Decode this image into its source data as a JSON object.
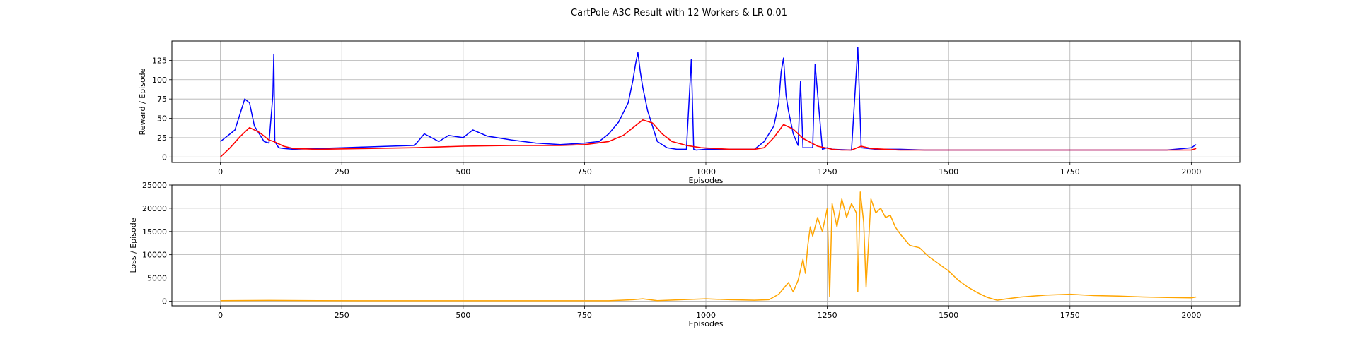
{
  "figure": {
    "title": "CartPole A3C Result with 12 Workers & LR 0.01"
  },
  "chart_data": [
    {
      "type": "line",
      "xlabel": "Episodes",
      "ylabel": "Reward / Episode",
      "xlim": [
        -100,
        2100
      ],
      "ylim": [
        -7,
        150
      ],
      "xticks": [
        0,
        250,
        500,
        750,
        1000,
        1250,
        1500,
        1750,
        2000
      ],
      "yticks": [
        0,
        25,
        50,
        75,
        100,
        125
      ],
      "grid": true,
      "series": [
        {
          "color": "#0000ff",
          "style": "raw",
          "x": [
            0,
            10,
            20,
            30,
            40,
            50,
            60,
            70,
            80,
            90,
            100,
            108,
            110,
            112,
            120,
            130,
            150,
            200,
            250,
            300,
            350,
            400,
            420,
            450,
            470,
            500,
            520,
            550,
            600,
            650,
            700,
            750,
            780,
            800,
            820,
            840,
            850,
            855,
            860,
            865,
            870,
            880,
            890,
            900,
            920,
            940,
            960,
            970,
            975,
            980,
            1000,
            1050,
            1100,
            1120,
            1140,
            1150,
            1155,
            1160,
            1165,
            1170,
            1180,
            1190,
            1195,
            1200,
            1220,
            1225,
            1240,
            1250,
            1260,
            1300,
            1313,
            1320,
            1350,
            1400,
            1450,
            1500,
            1550,
            1600,
            1650,
            1700,
            1750,
            1800,
            1850,
            1900,
            1950,
            2000,
            2010
          ],
          "y": [
            20,
            25,
            30,
            35,
            55,
            75,
            70,
            40,
            30,
            20,
            18,
            80,
            133,
            20,
            12,
            11,
            10,
            11,
            12,
            13,
            14,
            15,
            30,
            20,
            28,
            25,
            35,
            27,
            22,
            18,
            16,
            18,
            20,
            30,
            45,
            70,
            100,
            120,
            135,
            110,
            90,
            60,
            40,
            20,
            12,
            10,
            10,
            126,
            10,
            9,
            10,
            10,
            10,
            20,
            40,
            70,
            110,
            128,
            80,
            60,
            30,
            15,
            98,
            12,
            12,
            120,
            10,
            12,
            10,
            9,
            142,
            12,
            10,
            10,
            9,
            9,
            9,
            9,
            9,
            9,
            9,
            9,
            9,
            9,
            9,
            12,
            16
          ]
        },
        {
          "color": "#ff0000",
          "style": "smoothed",
          "x": [
            0,
            20,
            40,
            60,
            80,
            100,
            110,
            130,
            150,
            200,
            300,
            400,
            500,
            600,
            700,
            750,
            800,
            830,
            850,
            870,
            890,
            910,
            930,
            960,
            990,
            1050,
            1100,
            1120,
            1140,
            1160,
            1180,
            1200,
            1230,
            1260,
            1280,
            1300,
            1320,
            1340,
            1400,
            1500,
            1600,
            1700,
            1800,
            1900,
            2000,
            2010
          ],
          "y": [
            0,
            12,
            26,
            38,
            32,
            22,
            20,
            14,
            11,
            10,
            11,
            12,
            14,
            15,
            15,
            16,
            20,
            28,
            38,
            48,
            44,
            30,
            20,
            15,
            12,
            10,
            10,
            12,
            25,
            42,
            36,
            24,
            14,
            10,
            9,
            9,
            14,
            11,
            9,
            9,
            9,
            9,
            9,
            9,
            9,
            11
          ]
        }
      ]
    },
    {
      "type": "line",
      "xlabel": "Episodes",
      "ylabel": "Loss / Episode",
      "xlim": [
        -100,
        2100
      ],
      "ylim": [
        -1000,
        25000
      ],
      "xticks": [
        0,
        250,
        500,
        750,
        1000,
        1250,
        1500,
        1750,
        2000
      ],
      "yticks": [
        0,
        5000,
        10000,
        15000,
        20000,
        25000
      ],
      "grid": true,
      "series": [
        {
          "color": "#ffa500",
          "x": [
            0,
            100,
            200,
            300,
            400,
            500,
            600,
            700,
            800,
            850,
            870,
            900,
            950,
            1000,
            1050,
            1100,
            1130,
            1150,
            1170,
            1180,
            1190,
            1200,
            1205,
            1210,
            1215,
            1220,
            1230,
            1240,
            1250,
            1255,
            1260,
            1270,
            1280,
            1290,
            1300,
            1310,
            1313,
            1318,
            1325,
            1330,
            1340,
            1350,
            1360,
            1370,
            1380,
            1390,
            1400,
            1420,
            1440,
            1460,
            1480,
            1500,
            1520,
            1540,
            1560,
            1580,
            1600,
            1620,
            1650,
            1700,
            1750,
            1800,
            1850,
            1900,
            1950,
            2000,
            2010
          ],
          "y": [
            100,
            150,
            100,
            80,
            80,
            80,
            80,
            80,
            80,
            300,
            500,
            100,
            300,
            500,
            300,
            200,
            300,
            1500,
            4000,
            2000,
            4500,
            9000,
            6000,
            12000,
            16000,
            14000,
            18000,
            15000,
            20000,
            1000,
            21000,
            16000,
            22000,
            18000,
            21000,
            19000,
            2000,
            23500,
            17000,
            3000,
            22000,
            19000,
            20000,
            18000,
            18500,
            16000,
            14500,
            12000,
            11500,
            9500,
            8000,
            6500,
            4500,
            3000,
            1800,
            800,
            200,
            500,
            900,
            1300,
            1500,
            1200,
            1100,
            900,
            800,
            700,
            900
          ]
        }
      ]
    }
  ]
}
